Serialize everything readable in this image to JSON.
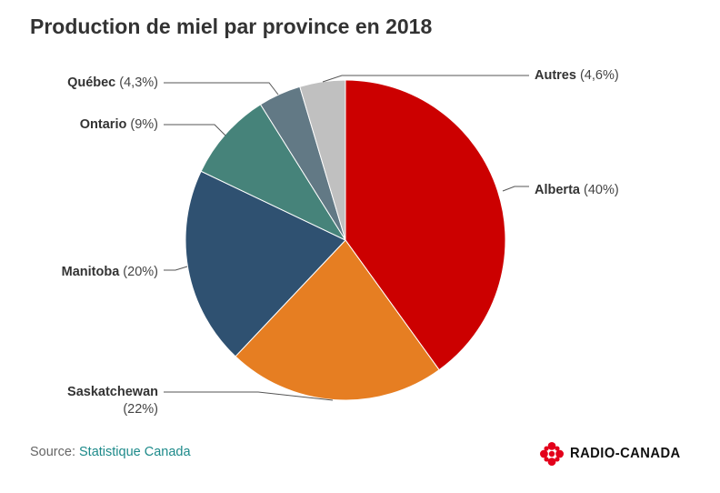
{
  "chart_data": {
    "type": "pie",
    "title": "Production de miel par province en 2018",
    "start": "top, clockwise",
    "slices": [
      {
        "name": "Alberta",
        "pct_label": "(40%)",
        "value": 40,
        "color": "#cc0000"
      },
      {
        "name": "Saskatchewan",
        "pct_label": "(22%)",
        "value": 22,
        "color": "#e67e22"
      },
      {
        "name": "Manitoba",
        "pct_label": "(20%)",
        "value": 20,
        "color": "#2f5171"
      },
      {
        "name": "Ontario",
        "pct_label": "(9%)",
        "value": 9,
        "color": "#46837a"
      },
      {
        "name": "Québec",
        "pct_label": "(4,3%)",
        "value": 4.3,
        "color": "#627985"
      },
      {
        "name": "Autres",
        "pct_label": "(4,6%)",
        "value": 4.6,
        "color": "#c0c0c0"
      }
    ]
  },
  "source": {
    "prefix": "Source:",
    "name": "Statistique Canada"
  },
  "brand": {
    "name": "RADIO-CANADA",
    "logo_icon": "radio-canada-gem-icon",
    "logo_color": "#e3001b"
  }
}
